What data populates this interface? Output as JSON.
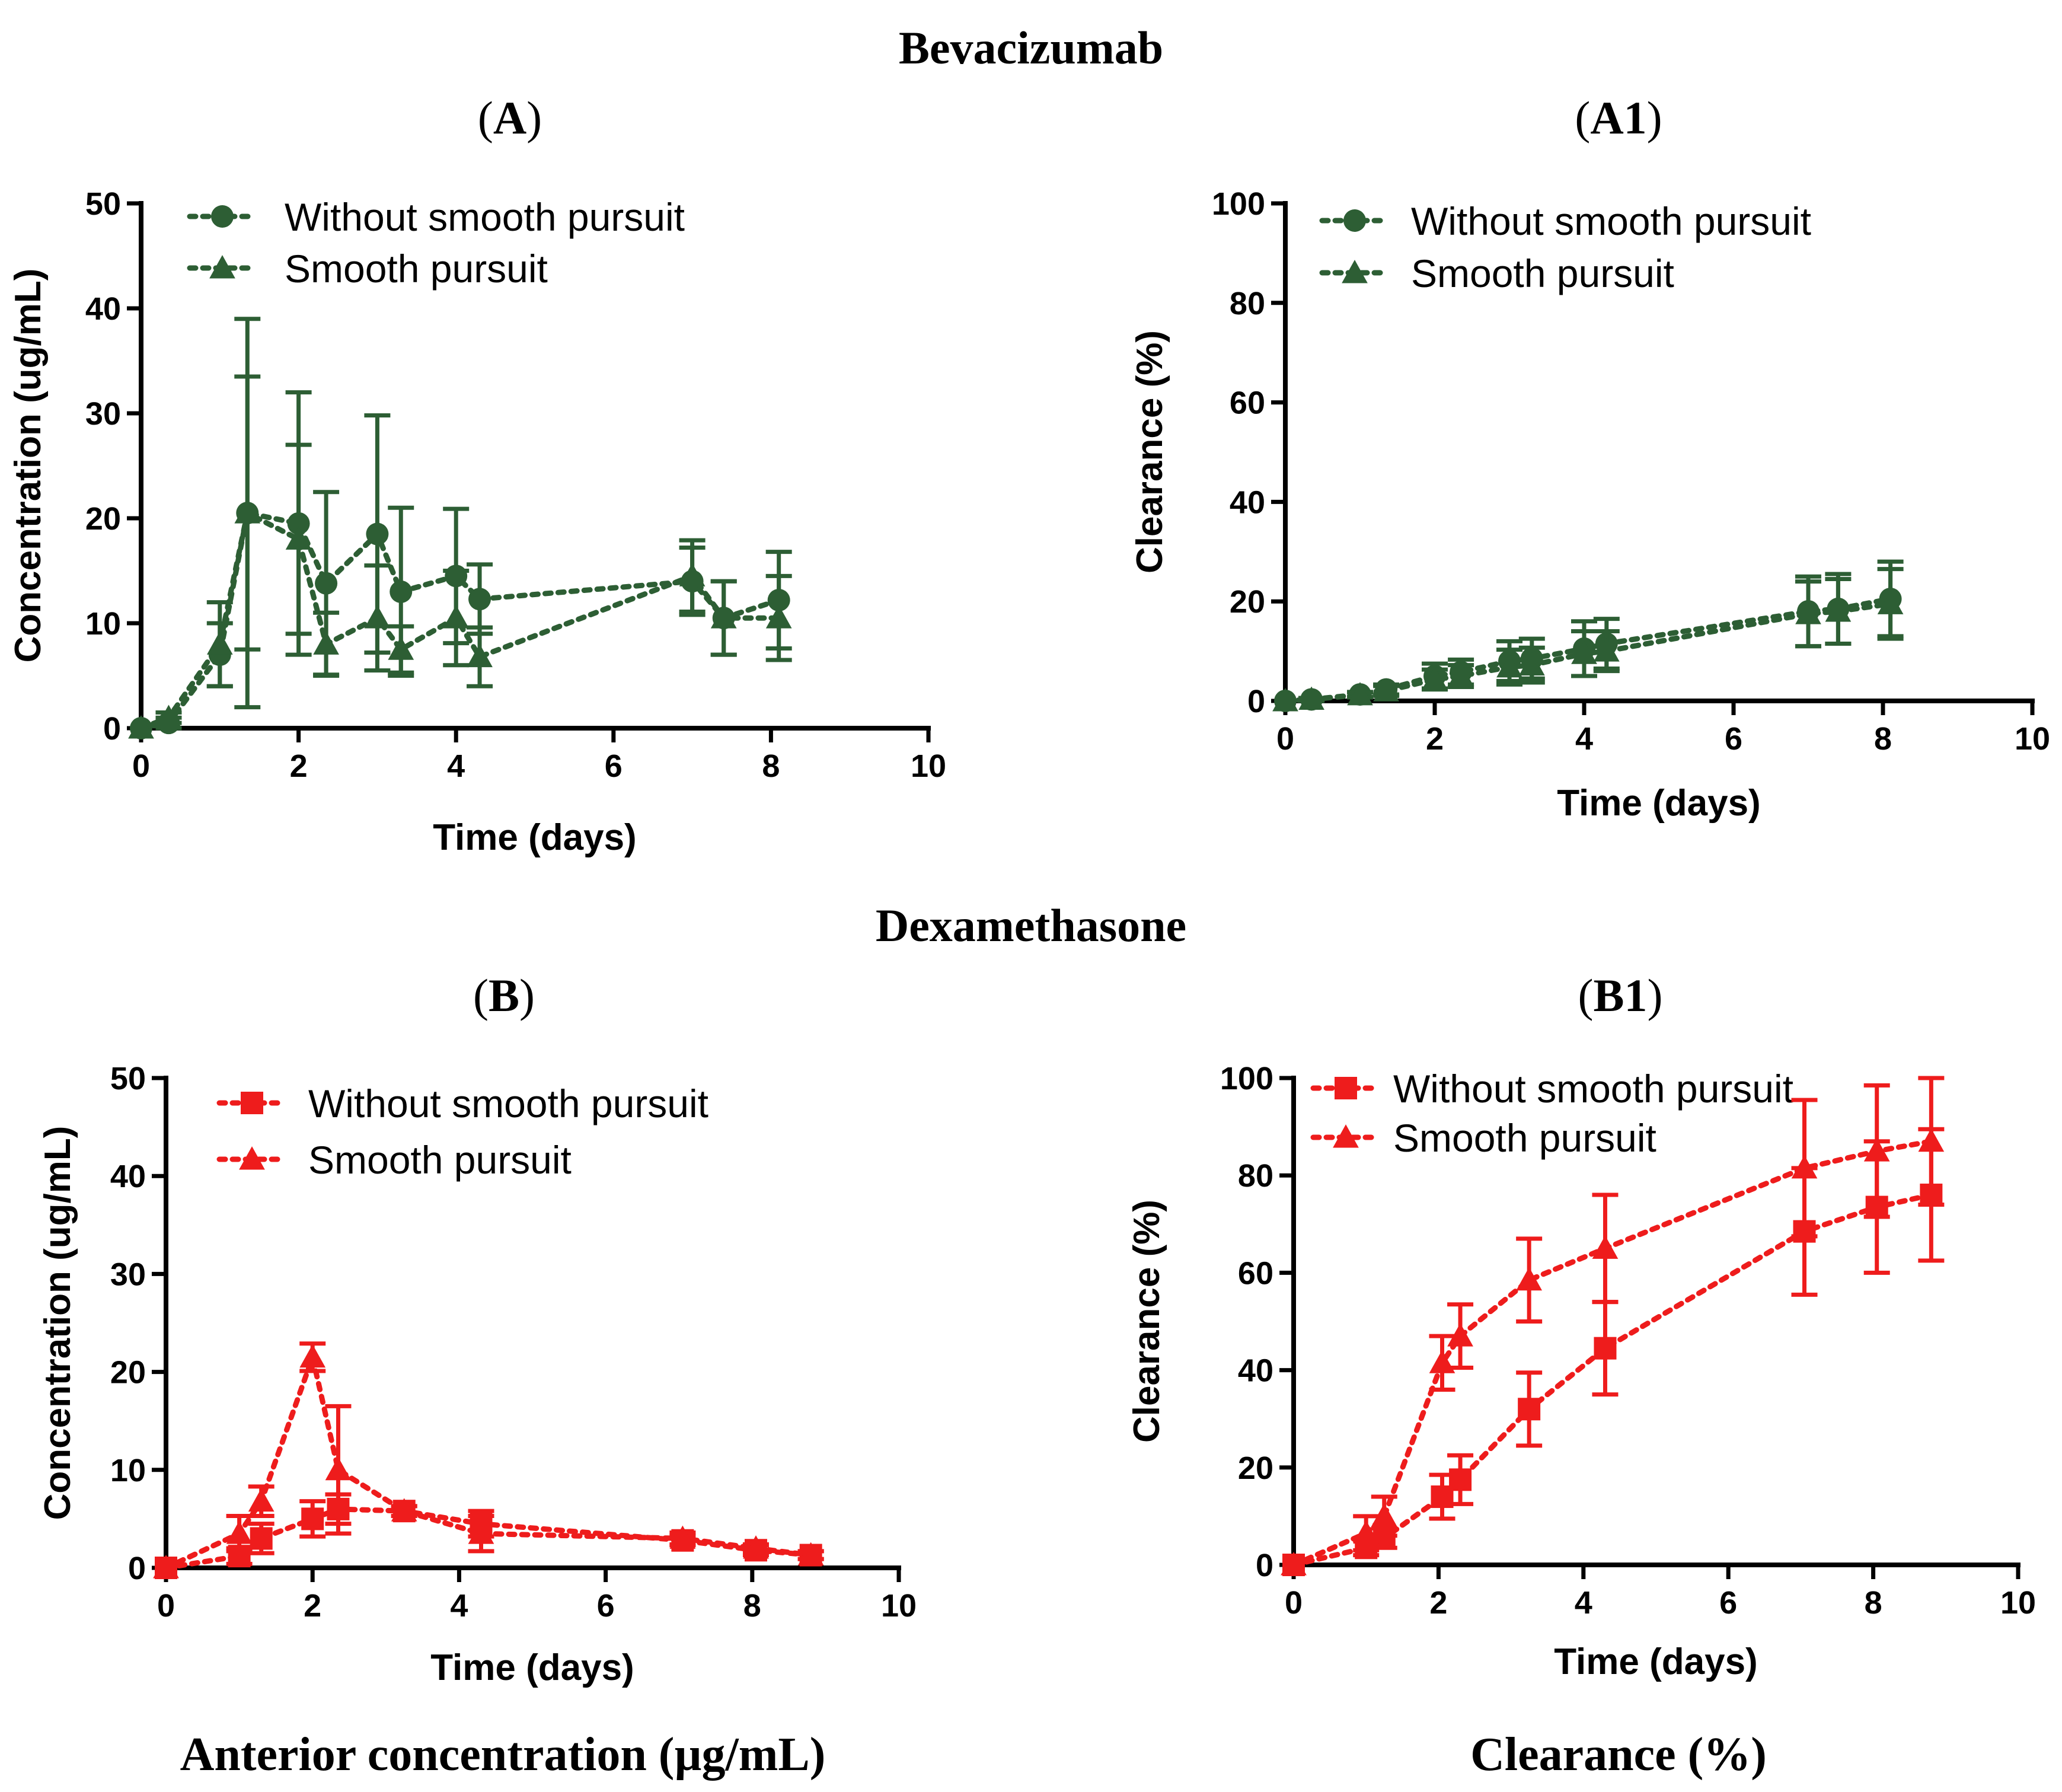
{
  "figure": {
    "section_top": "Bevacizumab",
    "section_bottom": "Dexamethasone",
    "caption_left": "Anterior concentration (µg/mL)",
    "caption_right": "Clearance (%)"
  },
  "chart_data": [
    {
      "id": "A",
      "panel_label": "A",
      "type": "line",
      "xlabel": "Time (days)",
      "ylabel": "Concentration (ug/mL)",
      "xlim": [
        0,
        10
      ],
      "ylim": [
        0,
        50
      ],
      "xticks": [
        0,
        2,
        4,
        6,
        8,
        10
      ],
      "yticks": [
        0,
        10,
        20,
        30,
        40,
        50
      ],
      "legend_position": "top",
      "series": [
        {
          "name": "Without smooth pursuit",
          "marker": "circle",
          "color": "#2d5e34",
          "x": [
            0,
            0.35,
            1,
            1.35,
            2,
            2.35,
            3,
            3.3,
            4,
            4.3,
            7,
            7.4,
            8.1
          ],
          "y": [
            0,
            0.5,
            7,
            20.5,
            19.5,
            13.8,
            18.5,
            13,
            14.5,
            12.3,
            14,
            10.5,
            12.2
          ],
          "err": [
            0,
            0.5,
            3,
            13,
            12.5,
            8.7,
            11.3,
            8,
            6.4,
            3.3,
            3.2,
            3.5,
            4.6
          ]
        },
        {
          "name": "Smooth pursuit",
          "marker": "triangle",
          "color": "#2d5e34",
          "x": [
            0,
            0.35,
            1,
            1.35,
            2,
            2.35,
            3,
            3.3,
            4,
            4.3,
            7,
            7.4,
            8.1
          ],
          "y": [
            0,
            1,
            8,
            20.5,
            18,
            8,
            10.5,
            7.5,
            10.5,
            6.8,
            14.5,
            10.5,
            10.5
          ],
          "err": [
            0,
            0.5,
            4,
            18.5,
            9,
            3,
            5,
            2.2,
            4.5,
            2.8,
            3.4,
            3.5,
            4
          ]
        }
      ]
    },
    {
      "id": "A1",
      "panel_label": "A1",
      "type": "line",
      "xlabel": "Time (days)",
      "ylabel": "Clearance (%)",
      "xlim": [
        0,
        10
      ],
      "ylim": [
        0,
        100
      ],
      "xticks": [
        0,
        2,
        4,
        6,
        8,
        10
      ],
      "yticks": [
        0,
        20,
        40,
        60,
        80,
        100
      ],
      "legend_position": "top",
      "series": [
        {
          "name": "Without smooth pursuit",
          "marker": "circle",
          "color": "#2d5e34",
          "x": [
            0,
            0.35,
            1,
            1.35,
            2,
            2.35,
            3,
            3.3,
            4,
            4.3,
            7,
            7.4,
            8.1
          ],
          "y": [
            0,
            0.3,
            1.3,
            2.3,
            5,
            5.8,
            8,
            8.5,
            10.5,
            11.5,
            18,
            18.5,
            20.5
          ],
          "err": [
            0,
            0.3,
            0.5,
            1,
            2.5,
            2.5,
            4,
            4,
            5.5,
            5,
            7,
            7,
            7.5
          ]
        },
        {
          "name": "Smooth pursuit",
          "marker": "triangle",
          "color": "#2d5e34",
          "x": [
            0,
            0.35,
            1,
            1.35,
            2,
            2.35,
            3,
            3.3,
            4,
            4.3,
            7,
            7.4,
            8.1
          ],
          "y": [
            0,
            0.3,
            1.2,
            2,
            4.3,
            5,
            6.8,
            7.2,
            9.5,
            10,
            17.5,
            18,
            19.5
          ],
          "err": [
            0,
            0.3,
            0.5,
            1,
            2,
            2.2,
            3.5,
            3.5,
            4.5,
            4,
            6.5,
            6.5,
            7
          ]
        }
      ]
    },
    {
      "id": "B",
      "panel_label": "B",
      "type": "line",
      "xlabel": "Time (days)",
      "ylabel": "Concentration (ug/mL)",
      "xlim": [
        0,
        10
      ],
      "ylim": [
        0,
        50
      ],
      "xticks": [
        0,
        2,
        4,
        6,
        8,
        10
      ],
      "yticks": [
        0,
        10,
        20,
        30,
        40,
        50
      ],
      "legend_position": "top",
      "series": [
        {
          "name": "Without smooth pursuit",
          "marker": "square",
          "color": "#ee1c1c",
          "x": [
            0,
            1,
            1.3,
            2,
            2.35,
            3.25,
            4.3,
            7.05,
            8.05,
            8.8
          ],
          "y": [
            0,
            1.2,
            3,
            5,
            6,
            5.8,
            4.5,
            2.8,
            1.8,
            1.3
          ],
          "err": [
            0,
            0.8,
            1.5,
            1.8,
            1.5,
            0.5,
            1.3,
            0.5,
            0.5,
            0.4
          ]
        },
        {
          "name": "Smooth pursuit",
          "marker": "triangle",
          "color": "#ee1c1c",
          "x": [
            0,
            1,
            1.3,
            2,
            2.35,
            3.25,
            4.3,
            7.05,
            8.05,
            8.8
          ],
          "y": [
            0,
            3.5,
            6.8,
            21.5,
            10,
            5.8,
            3.5,
            3,
            2,
            1.3
          ],
          "err": [
            0,
            1.8,
            1.5,
            1.4,
            6.5,
            0.5,
            1.8,
            0.6,
            0.4,
            0.4
          ]
        }
      ]
    },
    {
      "id": "B1",
      "panel_label": "B1",
      "type": "line",
      "xlabel": "Time (days)",
      "ylabel": "Clearance (%)",
      "xlim": [
        0,
        10
      ],
      "ylim": [
        0,
        100
      ],
      "xticks": [
        0,
        2,
        4,
        6,
        8,
        10
      ],
      "yticks": [
        0,
        20,
        40,
        60,
        80,
        100
      ],
      "legend_position": "top-left",
      "series": [
        {
          "name": "Without smooth pursuit",
          "marker": "square",
          "color": "#ee1c1c",
          "x": [
            0,
            1,
            1.25,
            2.05,
            2.3,
            3.25,
            4.3,
            7.05,
            8.05,
            8.8
          ],
          "y": [
            0,
            3.5,
            5.5,
            14,
            17.5,
            32,
            44.5,
            68.5,
            73.5,
            76
          ],
          "err": [
            0,
            1.5,
            2,
            4.5,
            5,
            7.5,
            9.5,
            13,
            13.5,
            13.5
          ]
        },
        {
          "name": "Smooth pursuit",
          "marker": "triangle",
          "color": "#ee1c1c",
          "x": [
            0,
            1,
            1.25,
            2.05,
            2.3,
            3.25,
            4.3,
            7.05,
            8.05,
            8.8
          ],
          "y": [
            0,
            6.5,
            10,
            41.5,
            47,
            58.5,
            65,
            81.5,
            85,
            87
          ],
          "err": [
            0,
            3.5,
            4,
            5.5,
            6.5,
            8.5,
            11,
            14,
            13.5,
            13
          ]
        }
      ]
    }
  ]
}
